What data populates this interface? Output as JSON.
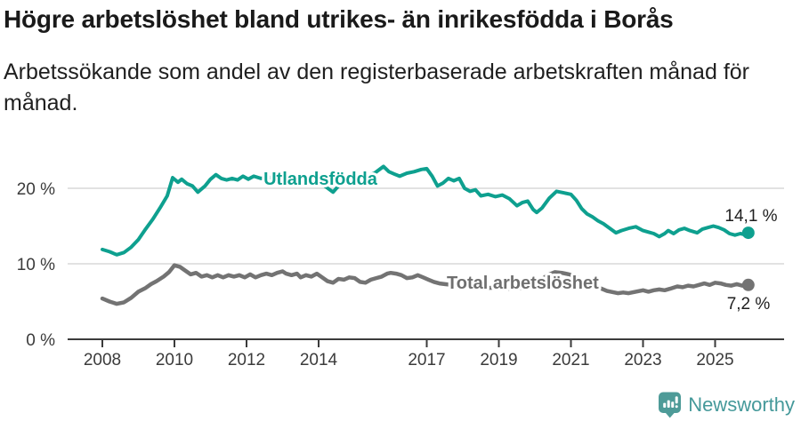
{
  "header": {
    "title": "Högre arbetslöshet bland utrikes- än inrikesfödda i Borås",
    "subtitle": "Arbetssökande som andel av den registerbaserade arbetskraften månad för månad."
  },
  "chart_data": {
    "type": "line",
    "title": "Högre arbetslöshet bland utrikes- än inrikesfödda i Borås",
    "xlabel": "",
    "ylabel": "",
    "grid": "horizontal",
    "legend_position": "inline-labels",
    "xlim": [
      2007.0,
      2026.9
    ],
    "ylim": [
      0,
      27
    ],
    "y_ticks": [
      {
        "value": 0,
        "label": "0 %"
      },
      {
        "value": 10,
        "label": "10 %"
      },
      {
        "value": 20,
        "label": "20 %"
      }
    ],
    "x_ticks": [
      {
        "value": 2008,
        "label": "2008"
      },
      {
        "value": 2010,
        "label": "2010"
      },
      {
        "value": 2012,
        "label": "2012"
      },
      {
        "value": 2014,
        "label": "2014"
      },
      {
        "value": 2017,
        "label": "2017"
      },
      {
        "value": 2019,
        "label": "2019"
      },
      {
        "value": 2021,
        "label": "2021"
      },
      {
        "value": 2023,
        "label": "2023"
      },
      {
        "value": 2025,
        "label": "2025"
      }
    ],
    "series": [
      {
        "name": "utlandsfodda",
        "label": "Utlandsfödda",
        "color": "#0ea08f",
        "end_value": 14.1,
        "end_value_label": "14,1 %",
        "points": [
          [
            2008.0,
            11.9
          ],
          [
            2008.2,
            11.6
          ],
          [
            2008.4,
            11.2
          ],
          [
            2008.6,
            11.5
          ],
          [
            2008.8,
            12.2
          ],
          [
            2009.0,
            13.2
          ],
          [
            2009.2,
            14.6
          ],
          [
            2009.4,
            15.9
          ],
          [
            2009.6,
            17.4
          ],
          [
            2009.8,
            19.0
          ],
          [
            2009.95,
            21.4
          ],
          [
            2010.1,
            20.8
          ],
          [
            2010.2,
            21.2
          ],
          [
            2010.35,
            20.6
          ],
          [
            2010.5,
            20.3
          ],
          [
            2010.65,
            19.5
          ],
          [
            2010.85,
            20.3
          ],
          [
            2011.0,
            21.2
          ],
          [
            2011.15,
            21.8
          ],
          [
            2011.3,
            21.3
          ],
          [
            2011.45,
            21.1
          ],
          [
            2011.6,
            21.3
          ],
          [
            2011.75,
            21.1
          ],
          [
            2011.9,
            21.6
          ],
          [
            2012.05,
            21.2
          ],
          [
            2012.2,
            21.6
          ],
          [
            2012.4,
            21.3
          ],
          [
            2012.6,
            21.5
          ],
          [
            2012.8,
            21.2
          ],
          [
            2013.0,
            21.4
          ],
          [
            2013.2,
            20.9
          ],
          [
            2013.4,
            21.3
          ],
          [
            2013.6,
            21.1
          ],
          [
            2013.8,
            21.4
          ],
          [
            2014.0,
            21.0
          ],
          [
            2014.2,
            20.2
          ],
          [
            2014.4,
            19.5
          ],
          [
            2014.55,
            20.3
          ],
          [
            2014.7,
            20.9
          ],
          [
            2014.9,
            21.2
          ],
          [
            2015.1,
            21.4
          ],
          [
            2015.3,
            21.6
          ],
          [
            2015.55,
            22.0
          ],
          [
            2015.8,
            22.9
          ],
          [
            2015.95,
            22.2
          ],
          [
            2016.1,
            21.9
          ],
          [
            2016.25,
            21.6
          ],
          [
            2016.45,
            22.0
          ],
          [
            2016.65,
            22.2
          ],
          [
            2016.85,
            22.5
          ],
          [
            2017.0,
            22.6
          ],
          [
            2017.15,
            21.6
          ],
          [
            2017.3,
            20.3
          ],
          [
            2017.45,
            20.7
          ],
          [
            2017.6,
            21.3
          ],
          [
            2017.75,
            21.0
          ],
          [
            2017.9,
            21.3
          ],
          [
            2018.05,
            20.0
          ],
          [
            2018.2,
            19.6
          ],
          [
            2018.35,
            19.8
          ],
          [
            2018.5,
            19.0
          ],
          [
            2018.7,
            19.2
          ],
          [
            2018.9,
            18.9
          ],
          [
            2019.1,
            19.1
          ],
          [
            2019.3,
            18.6
          ],
          [
            2019.5,
            17.7
          ],
          [
            2019.65,
            18.1
          ],
          [
            2019.8,
            18.3
          ],
          [
            2019.95,
            17.2
          ],
          [
            2020.05,
            16.8
          ],
          [
            2020.2,
            17.4
          ],
          [
            2020.4,
            18.7
          ],
          [
            2020.6,
            19.6
          ],
          [
            2020.8,
            19.4
          ],
          [
            2021.0,
            19.2
          ],
          [
            2021.15,
            18.4
          ],
          [
            2021.3,
            17.3
          ],
          [
            2021.45,
            16.6
          ],
          [
            2021.6,
            16.2
          ],
          [
            2021.75,
            15.7
          ],
          [
            2021.9,
            15.3
          ],
          [
            2022.05,
            14.8
          ],
          [
            2022.25,
            14.1
          ],
          [
            2022.4,
            14.4
          ],
          [
            2022.6,
            14.7
          ],
          [
            2022.8,
            14.9
          ],
          [
            2023.0,
            14.4
          ],
          [
            2023.15,
            14.2
          ],
          [
            2023.3,
            14.0
          ],
          [
            2023.45,
            13.6
          ],
          [
            2023.6,
            14.0
          ],
          [
            2023.7,
            14.4
          ],
          [
            2023.85,
            14.0
          ],
          [
            2024.0,
            14.5
          ],
          [
            2024.15,
            14.7
          ],
          [
            2024.3,
            14.4
          ],
          [
            2024.5,
            14.1
          ],
          [
            2024.65,
            14.6
          ],
          [
            2024.8,
            14.8
          ],
          [
            2024.95,
            15.0
          ],
          [
            2025.1,
            14.8
          ],
          [
            2025.25,
            14.5
          ],
          [
            2025.4,
            14.0
          ],
          [
            2025.55,
            13.8
          ],
          [
            2025.7,
            14.0
          ],
          [
            2025.8,
            13.9
          ],
          [
            2025.92,
            14.1
          ]
        ]
      },
      {
        "name": "total",
        "label": "Total arbetslöshet",
        "color": "#737373",
        "end_value": 7.2,
        "end_value_label": "7,2 %",
        "points": [
          [
            2008.0,
            5.4
          ],
          [
            2008.2,
            5.0
          ],
          [
            2008.4,
            4.7
          ],
          [
            2008.6,
            4.9
          ],
          [
            2008.8,
            5.5
          ],
          [
            2009.0,
            6.3
          ],
          [
            2009.2,
            6.8
          ],
          [
            2009.35,
            7.3
          ],
          [
            2009.5,
            7.7
          ],
          [
            2009.7,
            8.3
          ],
          [
            2009.85,
            8.9
          ],
          [
            2010.0,
            9.8
          ],
          [
            2010.15,
            9.6
          ],
          [
            2010.3,
            9.1
          ],
          [
            2010.45,
            8.6
          ],
          [
            2010.6,
            8.8
          ],
          [
            2010.75,
            8.3
          ],
          [
            2010.9,
            8.5
          ],
          [
            2011.05,
            8.2
          ],
          [
            2011.2,
            8.5
          ],
          [
            2011.35,
            8.2
          ],
          [
            2011.5,
            8.5
          ],
          [
            2011.65,
            8.3
          ],
          [
            2011.8,
            8.5
          ],
          [
            2011.95,
            8.2
          ],
          [
            2012.1,
            8.6
          ],
          [
            2012.25,
            8.2
          ],
          [
            2012.4,
            8.5
          ],
          [
            2012.55,
            8.7
          ],
          [
            2012.7,
            8.5
          ],
          [
            2012.85,
            8.8
          ],
          [
            2013.0,
            9.0
          ],
          [
            2013.1,
            8.7
          ],
          [
            2013.25,
            8.5
          ],
          [
            2013.4,
            8.7
          ],
          [
            2013.5,
            8.2
          ],
          [
            2013.65,
            8.5
          ],
          [
            2013.8,
            8.3
          ],
          [
            2013.95,
            8.7
          ],
          [
            2014.1,
            8.2
          ],
          [
            2014.25,
            7.7
          ],
          [
            2014.4,
            7.5
          ],
          [
            2014.55,
            8.0
          ],
          [
            2014.7,
            7.9
          ],
          [
            2014.85,
            8.2
          ],
          [
            2015.0,
            8.1
          ],
          [
            2015.15,
            7.6
          ],
          [
            2015.3,
            7.5
          ],
          [
            2015.45,
            7.9
          ],
          [
            2015.6,
            8.1
          ],
          [
            2015.75,
            8.3
          ],
          [
            2015.9,
            8.7
          ],
          [
            2016.0,
            8.8
          ],
          [
            2016.15,
            8.7
          ],
          [
            2016.3,
            8.5
          ],
          [
            2016.45,
            8.1
          ],
          [
            2016.6,
            8.2
          ],
          [
            2016.75,
            8.5
          ],
          [
            2016.9,
            8.2
          ],
          [
            2017.05,
            7.9
          ],
          [
            2017.2,
            7.6
          ],
          [
            2017.35,
            7.4
          ],
          [
            2017.5,
            7.3
          ],
          [
            2017.7,
            7.2
          ],
          [
            2017.9,
            7.1
          ],
          [
            2018.1,
            7.0
          ],
          [
            2018.4,
            6.9
          ],
          [
            2018.7,
            6.8
          ],
          [
            2019.0,
            6.9
          ],
          [
            2019.3,
            6.7
          ],
          [
            2019.6,
            6.8
          ],
          [
            2019.9,
            7.0
          ],
          [
            2020.1,
            7.6
          ],
          [
            2020.35,
            8.5
          ],
          [
            2020.55,
            8.9
          ],
          [
            2020.75,
            8.8
          ],
          [
            2020.95,
            8.6
          ],
          [
            2021.2,
            8.1
          ],
          [
            2021.5,
            7.4
          ],
          [
            2021.8,
            6.8
          ],
          [
            2022.0,
            6.4
          ],
          [
            2022.3,
            6.1
          ],
          [
            2022.45,
            6.2
          ],
          [
            2022.6,
            6.1
          ],
          [
            2022.8,
            6.3
          ],
          [
            2023.0,
            6.5
          ],
          [
            2023.15,
            6.3
          ],
          [
            2023.3,
            6.5
          ],
          [
            2023.45,
            6.6
          ],
          [
            2023.6,
            6.5
          ],
          [
            2023.75,
            6.7
          ],
          [
            2023.95,
            7.0
          ],
          [
            2024.1,
            6.9
          ],
          [
            2024.25,
            7.1
          ],
          [
            2024.4,
            7.0
          ],
          [
            2024.55,
            7.2
          ],
          [
            2024.7,
            7.4
          ],
          [
            2024.85,
            7.2
          ],
          [
            2025.0,
            7.5
          ],
          [
            2025.15,
            7.4
          ],
          [
            2025.3,
            7.2
          ],
          [
            2025.45,
            7.1
          ],
          [
            2025.6,
            7.3
          ],
          [
            2025.75,
            7.1
          ],
          [
            2025.92,
            7.2
          ]
        ]
      }
    ]
  },
  "footer": {
    "brand": "Newsworthy",
    "brand_color": "#45999a"
  },
  "colors": {
    "accent_teal": "#0ea08f",
    "series_gray": "#737373",
    "axis": "#3b3b3b",
    "gridline": "#d9d9d9",
    "text": "#1a1a1a"
  }
}
